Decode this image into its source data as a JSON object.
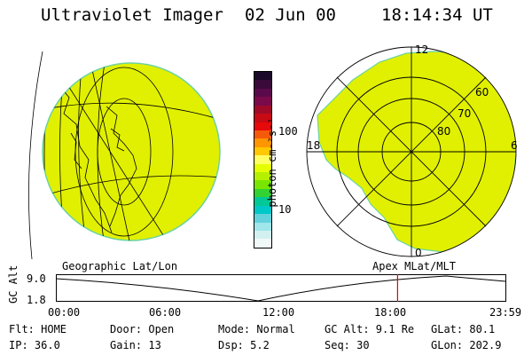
{
  "header": {
    "instrument": "Ultraviolet Imager",
    "date": "02 Jun 00",
    "time": "18:14:34 UT"
  },
  "colorbar": {
    "unit_label": "photon cm⁻²s⁻¹",
    "ticks": [
      "100",
      "10"
    ],
    "colors": [
      "#1a0a28",
      "#3a0a3a",
      "#5a0a4a",
      "#7a0a4a",
      "#a00a28",
      "#c80a14",
      "#e60a0a",
      "#f55a0a",
      "#ff9600",
      "#ffc800",
      "#ffff64",
      "#e6ff00",
      "#b4f000",
      "#78e600",
      "#32d232",
      "#00c896",
      "#00c8c8",
      "#64d2dc",
      "#a0e6eb",
      "#d2f0f0",
      "#f0f8fa"
    ]
  },
  "left_map": {
    "label": "Geographic Lat/Lon",
    "fill": "#e1f000"
  },
  "right_map": {
    "label": "Apex MLat/MLT",
    "fill": "#e1f000",
    "mlt_labels": [
      "12",
      "18",
      "6",
      "0"
    ],
    "lat_labels": [
      "60",
      "70",
      "80"
    ]
  },
  "altitude_plot": {
    "ylabel": "GC Alt",
    "yticks": [
      "9.0",
      "1.8"
    ],
    "xticks": [
      "00:00",
      "06:00",
      "12:00",
      "18:00",
      "23:59"
    ],
    "current_time_marker": "18:14",
    "marker_color": "#e00000"
  },
  "info": {
    "flt": "Flt: HOME",
    "ip": "IP: 36.0",
    "door": "Door: Open",
    "gain": "Gain: 13",
    "mode": "Mode: Normal",
    "dsp": "Dsp:    5.2",
    "gcalt": "GC Alt: 9.1 Re",
    "seq": "Seq: 30",
    "glat": "GLat:  80.1",
    "glon": "GLon: 202.9"
  }
}
